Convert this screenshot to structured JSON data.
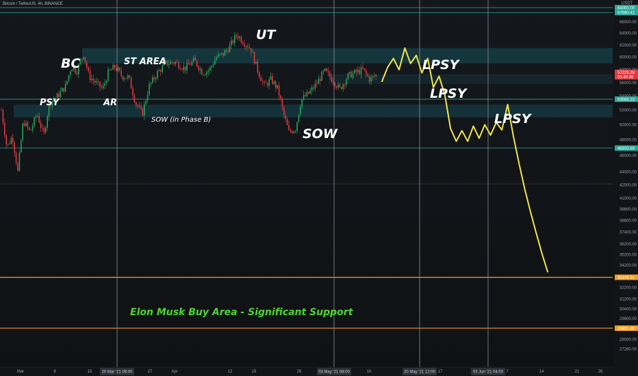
{
  "header": {
    "symbol": "Bitcoin / TetherUS, 4h, BINANCE",
    "currency": "USDT"
  },
  "colors": {
    "background": "#121418",
    "up_candle": "#26a65b",
    "down_candle": "#e0393e",
    "projection": "#f2e64a",
    "orange_line": "#f0a020",
    "zone_fill": "#1a6f7f",
    "price_line": "#2aa89a",
    "green_text": "#4cd630"
  },
  "annotations": [
    {
      "id": "bc",
      "text": "BC"
    },
    {
      "id": "psy",
      "text": "PSY"
    },
    {
      "id": "ar",
      "text": "AR"
    },
    {
      "id": "st",
      "text": "ST AREA"
    },
    {
      "id": "sow-b",
      "text": "SOW (in Phase B)"
    },
    {
      "id": "ut",
      "text": "UT"
    },
    {
      "id": "sow",
      "text": "SOW"
    },
    {
      "id": "lpsy1",
      "text": "LPSY"
    },
    {
      "id": "lpsy2",
      "text": "LPSY"
    },
    {
      "id": "lpsy3",
      "text": "LPSY"
    },
    {
      "id": "elon",
      "text": "Elon Musk Buy Area - Significant Support"
    }
  ],
  "price_labels": [
    {
      "text": "64000.00",
      "color": "#ffffff",
      "bg": "#2aa89a"
    },
    {
      "text": "67690.42",
      "color": "#ffffff",
      "bg": "#2aa89a"
    },
    {
      "text": "57229.28",
      "color": "#ffffff",
      "bg": "#e0393e"
    },
    {
      "text": "01:40:36",
      "color": "#ffffff",
      "bg": "#e0393e"
    },
    {
      "text": "53568.23",
      "color": "#ffffff",
      "bg": "#2aa89a"
    },
    {
      "text": "46933.69",
      "color": "#ffffff",
      "bg": "#2aa89a"
    },
    {
      "text": "33105.51",
      "color": "#ffffff",
      "bg": "#f0a020"
    },
    {
      "text": "28851.65",
      "color": "#ffffff",
      "bg": "#f0a020"
    }
  ],
  "y_ticks": [
    "66000.00",
    "64000.00",
    "62000.00",
    "60000.00",
    "58000.00",
    "56000.00",
    "54000.00",
    "52000.00",
    "50000.00",
    "48000.00",
    "46000.00",
    "44000.00",
    "42500.00",
    "41000.00",
    "39800.00",
    "38600.00",
    "37400.00",
    "36200.00",
    "35200.00",
    "34200.00",
    "32200.00",
    "31200.00",
    "30400.00",
    "29600.00",
    "28000.00",
    "27280.00"
  ],
  "x_ticks": [
    "Mar",
    "8",
    "15",
    "27",
    "Apr",
    "12",
    "19",
    "26",
    "10",
    "17",
    "24",
    "7",
    "14",
    "21",
    "26"
  ],
  "x_time_labels": [
    "20 Mar '21   08:00",
    "03 May '21   08:00",
    "20 May '21   12:00",
    "03 Jun '21   04:00"
  ],
  "chart_data": {
    "type": "candlestick",
    "title": "Bitcoin / TetherUS, 4h, BINANCE",
    "ylabel": "USDT",
    "ylim": [
      26800,
      69000
    ],
    "log_scale": true,
    "grid": false,
    "key_levels": [
      67690.42,
      53568.23,
      46933.69,
      33105.51,
      28851.65
    ],
    "projection_path": [
      [
        0,
        56200
      ],
      [
        1,
        58400
      ],
      [
        2,
        59800
      ],
      [
        3,
        58000
      ],
      [
        4,
        61500
      ],
      [
        5,
        59000
      ],
      [
        6,
        60300
      ],
      [
        7,
        57500
      ],
      [
        8,
        59800
      ],
      [
        9,
        55300
      ],
      [
        10,
        57000
      ],
      [
        11,
        54200
      ],
      [
        12,
        49500
      ],
      [
        13,
        47800
      ],
      [
        14,
        49200
      ],
      [
        15,
        47800
      ],
      [
        16,
        49800
      ],
      [
        17,
        48200
      ],
      [
        18,
        50000
      ],
      [
        19,
        48600
      ],
      [
        20,
        50300
      ],
      [
        21,
        49300
      ],
      [
        22,
        52800
      ],
      [
        23,
        48500
      ],
      [
        24,
        45000
      ],
      [
        25,
        42000
      ],
      [
        26,
        39500
      ],
      [
        27,
        37300
      ],
      [
        28,
        35300
      ],
      [
        29,
        33600
      ]
    ]
  }
}
